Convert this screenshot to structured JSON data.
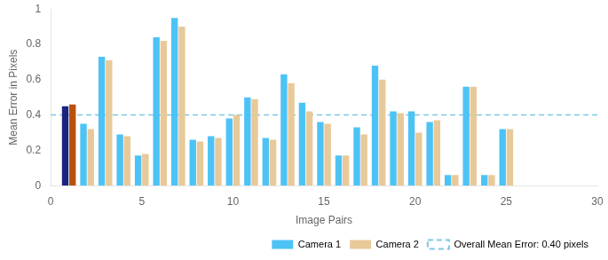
{
  "chart_data": {
    "type": "bar",
    "x_label": "Image Pairs",
    "y_label": "Mean Error in Pixels",
    "x": [
      1,
      2,
      3,
      4,
      5,
      6,
      7,
      8,
      9,
      10,
      11,
      12,
      13,
      14,
      15,
      16,
      17,
      18,
      19,
      20,
      21,
      22,
      23,
      24,
      25
    ],
    "series": [
      {
        "name": "Camera 1",
        "color": "#4DC3F5",
        "colors": [
          "#1A237E",
          "#4DC3F5",
          "#4DC3F5",
          "#4DC3F5",
          "#4DC3F5",
          "#4DC3F5",
          "#4DC3F5",
          "#4DC3F5",
          "#4DC3F5",
          "#4DC3F5",
          "#4DC3F5",
          "#4DC3F5",
          "#4DC3F5",
          "#4DC3F5",
          "#4DC3F5",
          "#4DC3F5",
          "#4DC3F5",
          "#4DC3F5",
          "#4DC3F5",
          "#4DC3F5",
          "#4DC3F5",
          "#4DC3F5",
          "#4DC3F5",
          "#4DC3F5",
          "#4DC3F5"
        ],
        "values": [
          0.45,
          0.35,
          0.73,
          0.29,
          0.17,
          0.84,
          0.95,
          0.26,
          0.28,
          0.38,
          0.5,
          0.27,
          0.63,
          0.47,
          0.36,
          0.17,
          0.33,
          0.68,
          0.42,
          0.42,
          0.36,
          0.06,
          0.56,
          0.06,
          0.32
        ]
      },
      {
        "name": "Camera 2",
        "color": "#E8C99A",
        "colors": [
          "#B8520A",
          "#E8C99A",
          "#E8C99A",
          "#E8C99A",
          "#E8C99A",
          "#E8C99A",
          "#E8C99A",
          "#E8C99A",
          "#E8C99A",
          "#E8C99A",
          "#E8C99A",
          "#E8C99A",
          "#E8C99A",
          "#E8C99A",
          "#E8C99A",
          "#E8C99A",
          "#E8C99A",
          "#E8C99A",
          "#E8C99A",
          "#E8C99A",
          "#E8C99A",
          "#E8C99A",
          "#E8C99A",
          "#E8C99A",
          "#E8C99A"
        ],
        "values": [
          0.46,
          0.32,
          0.71,
          0.28,
          0.18,
          0.82,
          0.9,
          0.25,
          0.27,
          0.4,
          0.49,
          0.26,
          0.58,
          0.42,
          0.35,
          0.17,
          0.29,
          0.6,
          0.41,
          0.3,
          0.37,
          0.06,
          0.56,
          0.06,
          0.32
        ]
      }
    ],
    "reference_line": {
      "name": "Overall Mean Error: 0.40 pixels",
      "value": 0.4,
      "color": "#7EC8E3",
      "line_style": "dashed"
    },
    "xlim": [
      0,
      30
    ],
    "xticks": [
      0,
      5,
      10,
      15,
      20,
      25,
      30
    ],
    "ylim": [
      0,
      1.0
    ],
    "yticks": [
      0,
      0.2,
      0.4,
      0.6,
      0.8,
      1
    ],
    "grid": false,
    "legend": "lower right"
  }
}
